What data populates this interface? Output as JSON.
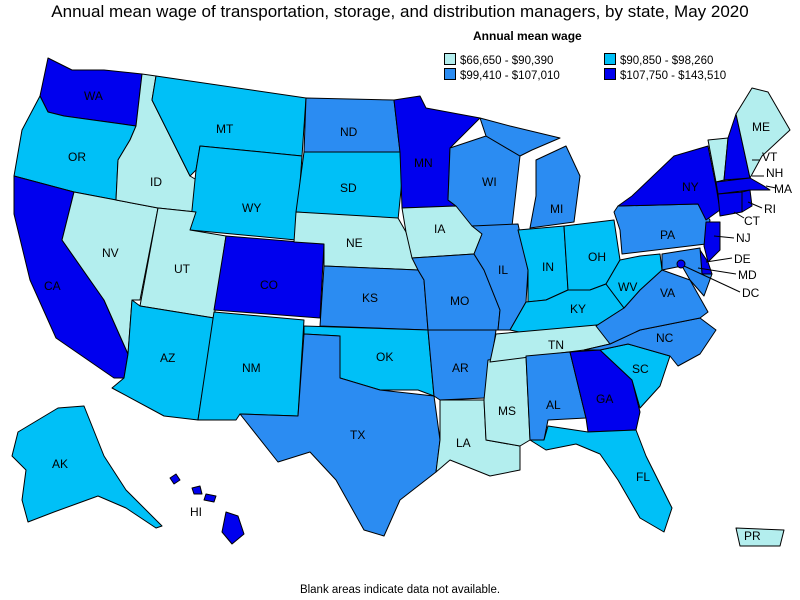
{
  "title": "Annual mean wage of transportation, storage, and distribution managers, by state, May 2020",
  "legend": {
    "title": "Annual mean wage",
    "items": [
      {
        "range": "$66,650 - $90,390",
        "color": "#b3eeee"
      },
      {
        "range": "$90,850 - $98,260",
        "color": "#00c0f7"
      },
      {
        "range": "$99,410 - $107,010",
        "color": "#2b8cf2"
      },
      {
        "range": "$107,750 - $143,510",
        "color": "#0000ee"
      }
    ]
  },
  "footnote": "Blank areas indicate data not available.",
  "states": {
    "WA": {
      "label": "WA",
      "class": 3
    },
    "OR": {
      "label": "OR",
      "class": 1
    },
    "CA": {
      "label": "CA",
      "class": 3
    },
    "NV": {
      "label": "NV",
      "class": 0
    },
    "ID": {
      "label": "ID",
      "class": 0
    },
    "MT": {
      "label": "MT",
      "class": 1
    },
    "WY": {
      "label": "WY",
      "class": 1
    },
    "UT": {
      "label": "UT",
      "class": 0
    },
    "AZ": {
      "label": "AZ",
      "class": 1
    },
    "CO": {
      "label": "CO",
      "class": 3
    },
    "NM": {
      "label": "NM",
      "class": 1
    },
    "ND": {
      "label": "ND",
      "class": 2
    },
    "SD": {
      "label": "SD",
      "class": 1
    },
    "NE": {
      "label": "NE",
      "class": 0
    },
    "KS": {
      "label": "KS",
      "class": 2
    },
    "OK": {
      "label": "OK",
      "class": 1
    },
    "TX": {
      "label": "TX",
      "class": 2
    },
    "MN": {
      "label": "MN",
      "class": 3
    },
    "IA": {
      "label": "IA",
      "class": 0
    },
    "MO": {
      "label": "MO",
      "class": 2
    },
    "AR": {
      "label": "AR",
      "class": 2
    },
    "LA": {
      "label": "LA",
      "class": 0
    },
    "WI": {
      "label": "WI",
      "class": 2
    },
    "IL": {
      "label": "IL",
      "class": 2
    },
    "MI": {
      "label": "MI",
      "class": 2
    },
    "IN": {
      "label": "IN",
      "class": 1
    },
    "OH": {
      "label": "OH",
      "class": 1
    },
    "KY": {
      "label": "KY",
      "class": 1
    },
    "TN": {
      "label": "TN",
      "class": 0
    },
    "MS": {
      "label": "MS",
      "class": 0
    },
    "AL": {
      "label": "AL",
      "class": 2
    },
    "GA": {
      "label": "GA",
      "class": 3
    },
    "FL": {
      "label": "FL",
      "class": 1
    },
    "SC": {
      "label": "SC",
      "class": 1
    },
    "NC": {
      "label": "NC",
      "class": 2
    },
    "VA": {
      "label": "VA",
      "class": 2
    },
    "WV": {
      "label": "WV",
      "class": 1
    },
    "PA": {
      "label": "PA",
      "class": 2
    },
    "NY": {
      "label": "NY",
      "class": 3
    },
    "VT": {
      "label": "VT",
      "class": 0
    },
    "NH": {
      "label": "NH",
      "class": 3
    },
    "ME": {
      "label": "ME",
      "class": 0
    },
    "MA": {
      "label": "MA",
      "class": 3
    },
    "RI": {
      "label": "RI",
      "class": 3
    },
    "CT": {
      "label": "CT",
      "class": 3
    },
    "NJ": {
      "label": "NJ",
      "class": 3
    },
    "DE": {
      "label": "DE",
      "class": 3
    },
    "MD": {
      "label": "MD",
      "class": 2
    },
    "DC": {
      "label": "DC",
      "class": 3
    },
    "AK": {
      "label": "AK",
      "class": 1
    },
    "HI": {
      "label": "HI",
      "class": 3
    },
    "PR": {
      "label": "PR",
      "class": 0
    }
  }
}
